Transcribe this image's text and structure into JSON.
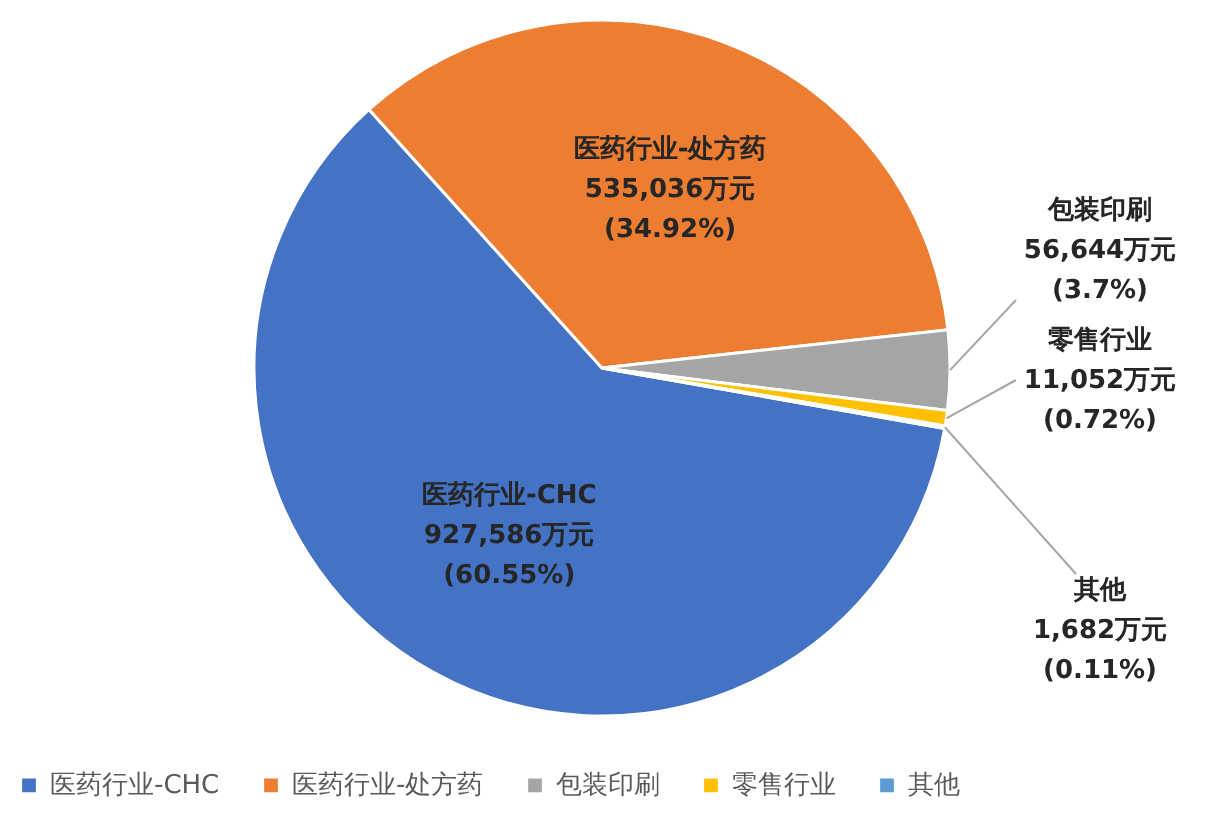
{
  "chart_data": {
    "type": "pie",
    "categories": [
      "医药行业-CHC",
      "医药行业-处方药",
      "包装印刷",
      "零售行业",
      "其他"
    ],
    "values": [
      927586,
      535036,
      56644,
      11052,
      1682
    ],
    "colors": [
      "#4472c4",
      "#ed7d31",
      "#a5a5a5",
      "#ffc000",
      "#5b9bd5"
    ],
    "value_labels": [
      "927,586万元 (60.55%)",
      "535,036万元 (34.92%)",
      "56,644万元 (3.7%)",
      "11,052万元 (0.72%)",
      "1,682万元 (0.11%)"
    ],
    "legend": "bottom"
  }
}
